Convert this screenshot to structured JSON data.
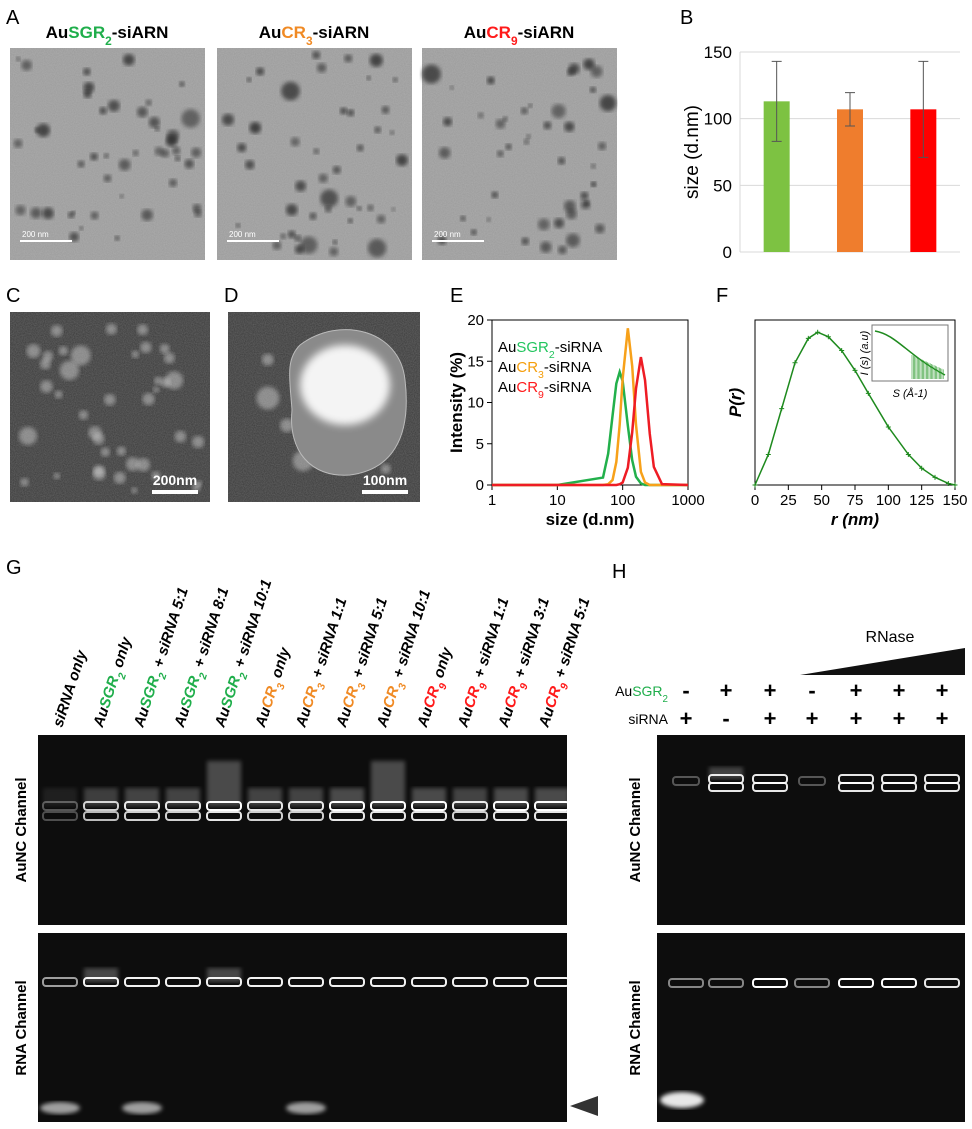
{
  "panels": {
    "a": {
      "label": "A",
      "images": [
        {
          "title": [
            {
              "text": "Au"
            },
            {
              "text": "SGR",
              "color": "#1fae4b"
            },
            {
              "text": "2",
              "color": "#1fae4b",
              "sub": true
            },
            {
              "text": "-siARN"
            }
          ],
          "scale_bar": "200 nm"
        },
        {
          "title": [
            {
              "text": "Au"
            },
            {
              "text": "CR",
              "color": "#f08a24"
            },
            {
              "text": "3",
              "color": "#f08a24",
              "sub": true
            },
            {
              "text": "-siARN"
            }
          ],
          "scale_bar": "200 nm"
        },
        {
          "title": [
            {
              "text": "Au"
            },
            {
              "text": "CR",
              "color": "#ff1a1a"
            },
            {
              "text": "9",
              "color": "#ff1a1a",
              "sub": true
            },
            {
              "text": "-siARN"
            }
          ],
          "scale_bar": "200 nm"
        }
      ]
    },
    "c": {
      "label": "C",
      "scale_bar": "200nm"
    },
    "d": {
      "label": "D",
      "scale_bar": "100nm"
    },
    "g": {
      "label": "G",
      "lanes": [
        [
          {
            "text": "siRNA only"
          }
        ],
        [
          {
            "text": "Au"
          },
          {
            "text": "SGR",
            "color": "#1fae4b"
          },
          {
            "text": "2",
            "color": "#1fae4b",
            "sub": true
          },
          {
            "text": " only"
          }
        ],
        [
          {
            "text": "Au"
          },
          {
            "text": "SGR",
            "color": "#1fae4b"
          },
          {
            "text": "2",
            "color": "#1fae4b",
            "sub": true
          },
          {
            "text": " + siRNA 5:1"
          }
        ],
        [
          {
            "text": "Au"
          },
          {
            "text": "SGR",
            "color": "#1fae4b"
          },
          {
            "text": "2",
            "color": "#1fae4b",
            "sub": true
          },
          {
            "text": " + siRNA 8:1"
          }
        ],
        [
          {
            "text": "Au"
          },
          {
            "text": "SGR",
            "color": "#1fae4b"
          },
          {
            "text": "2",
            "color": "#1fae4b",
            "sub": true
          },
          {
            "text": " + siRNA 10:1"
          }
        ],
        [
          {
            "text": "Au"
          },
          {
            "text": "CR",
            "color": "#f08a24"
          },
          {
            "text": "3",
            "color": "#f08a24",
            "sub": true
          },
          {
            "text": " only"
          }
        ],
        [
          {
            "text": "Au"
          },
          {
            "text": "CR",
            "color": "#f08a24"
          },
          {
            "text": "3",
            "color": "#f08a24",
            "sub": true
          },
          {
            "text": " + siRNA 1:1"
          }
        ],
        [
          {
            "text": "Au"
          },
          {
            "text": "CR",
            "color": "#f08a24"
          },
          {
            "text": "3",
            "color": "#f08a24",
            "sub": true
          },
          {
            "text": " + siRNA 5:1"
          }
        ],
        [
          {
            "text": "Au"
          },
          {
            "text": "CR",
            "color": "#f08a24"
          },
          {
            "text": "3",
            "color": "#f08a24",
            "sub": true
          },
          {
            "text": " + siRNA 10:1"
          }
        ],
        [
          {
            "text": "Au"
          },
          {
            "text": "CR",
            "color": "#ff1a1a"
          },
          {
            "text": "9",
            "color": "#ff1a1a",
            "sub": true
          },
          {
            "text": " only"
          }
        ],
        [
          {
            "text": "Au"
          },
          {
            "text": "CR",
            "color": "#ff1a1a"
          },
          {
            "text": "9",
            "color": "#ff1a1a",
            "sub": true
          },
          {
            "text": " + siRNA 1:1"
          }
        ],
        [
          {
            "text": "Au"
          },
          {
            "text": "CR",
            "color": "#ff1a1a"
          },
          {
            "text": "9",
            "color": "#ff1a1a",
            "sub": true
          },
          {
            "text": " + siRNA 3:1"
          }
        ],
        [
          {
            "text": "Au"
          },
          {
            "text": "CR",
            "color": "#ff1a1a"
          },
          {
            "text": "9",
            "color": "#ff1a1a",
            "sub": true
          },
          {
            "text": " + siRNA 5:1"
          }
        ]
      ],
      "channels": [
        "AuNC Channel",
        "RNA Channel"
      ]
    },
    "h": {
      "label": "H",
      "treatment": "RNase",
      "rows": [
        {
          "label": [
            {
              "text": "Au"
            },
            {
              "text": "SGR",
              "color": "#1fae4b"
            },
            {
              "text": "2",
              "color": "#1fae4b",
              "sub": true
            }
          ],
          "signs": [
            "-",
            "+",
            "+",
            "-",
            "+",
            "+",
            "+"
          ]
        },
        {
          "label": [
            {
              "text": "siRNA"
            }
          ],
          "signs": [
            "+",
            "-",
            "+",
            "+",
            "+",
            "+",
            "+"
          ]
        }
      ],
      "channels": [
        "AuNC Channel",
        "RNA Channel"
      ]
    }
  },
  "chart_data": [
    {
      "type": "bar",
      "panel_label": "B",
      "ylabel": "size (d.nm)",
      "categories": [
        null,
        null,
        null
      ],
      "values": [
        113,
        107,
        107
      ],
      "errors": [
        30,
        12.5,
        36
      ],
      "colors": [
        "#7dc242",
        "#ef7d2d",
        "#ff0000"
      ],
      "ylim": [
        0,
        150
      ],
      "yticks": [
        0,
        50,
        100,
        150
      ],
      "grid": true
    },
    {
      "type": "line",
      "panel_label": "E",
      "xlabel": "size (d.nm)",
      "ylabel": "Intensity (%)",
      "xscale": "log",
      "x": [
        1,
        10,
        50,
        60,
        70,
        80,
        90,
        100,
        120,
        140,
        160,
        190,
        220,
        260,
        300,
        400,
        1000
      ],
      "xlim": [
        1,
        1000
      ],
      "xticks": [
        1,
        10,
        100,
        1000
      ],
      "ylim": [
        0,
        20
      ],
      "yticks": [
        0,
        5,
        10,
        15,
        20
      ],
      "legend": "upper left",
      "series": [
        {
          "name": [
            {
              "text": "Au"
            },
            {
              "text": "SGR",
              "color": "#22c55e"
            },
            {
              "text": "2",
              "color": "#22c55e",
              "sub": true
            },
            {
              "text": "-siRNA"
            }
          ],
          "color": "#22b04b",
          "values": [
            0,
            0,
            0.9,
            3.8,
            8.4,
            12.3,
            13.7,
            12.6,
            7.2,
            3.0,
            1.0,
            0.2,
            0,
            0,
            0,
            0,
            0
          ]
        },
        {
          "name": [
            {
              "text": "Au"
            },
            {
              "text": "CR",
              "color": "#f59e0b"
            },
            {
              "text": "3",
              "color": "#f59e0b",
              "sub": true
            },
            {
              "text": "-siRNA"
            }
          ],
          "color": "#f7a11a",
          "values": [
            0,
            0,
            0,
            0.1,
            0.6,
            2.8,
            7.3,
            12.9,
            19,
            14.4,
            7.3,
            1.6,
            0.3,
            0,
            0,
            0,
            0
          ]
        },
        {
          "name": [
            {
              "text": "Au"
            },
            {
              "text": "CR",
              "color": "#ff1a1a"
            },
            {
              "text": "9",
              "color": "#ff1a1a",
              "sub": true
            },
            {
              "text": "-siRNA"
            }
          ],
          "color": "#ee1c24",
          "values": [
            0,
            0,
            0,
            0,
            0,
            0,
            0.1,
            0.3,
            2.1,
            6.4,
            11.7,
            15.5,
            12.7,
            6.2,
            2.2,
            0.1,
            0
          ]
        }
      ]
    },
    {
      "type": "line",
      "panel_label": "F",
      "xlabel": "r (nm)",
      "ylabel": "P(r)",
      "markers": true,
      "x": [
        0,
        10,
        20,
        30,
        40,
        47,
        55,
        65,
        75,
        85,
        100,
        115,
        125,
        135,
        145,
        150
      ],
      "xlim": [
        0,
        150
      ],
      "xticks": [
        0,
        25,
        50,
        75,
        100,
        125,
        150
      ],
      "ylim": [
        0,
        1.08
      ],
      "series": [
        {
          "color": "#1e8a1e",
          "values": [
            0,
            0.2,
            0.5,
            0.8,
            0.96,
            1.0,
            0.97,
            0.88,
            0.75,
            0.6,
            0.38,
            0.2,
            0.11,
            0.05,
            0.01,
            0
          ]
        }
      ],
      "inset": {
        "ylabel": "I (s) (a.u)",
        "xlabel": "S (Å-1)"
      }
    }
  ]
}
